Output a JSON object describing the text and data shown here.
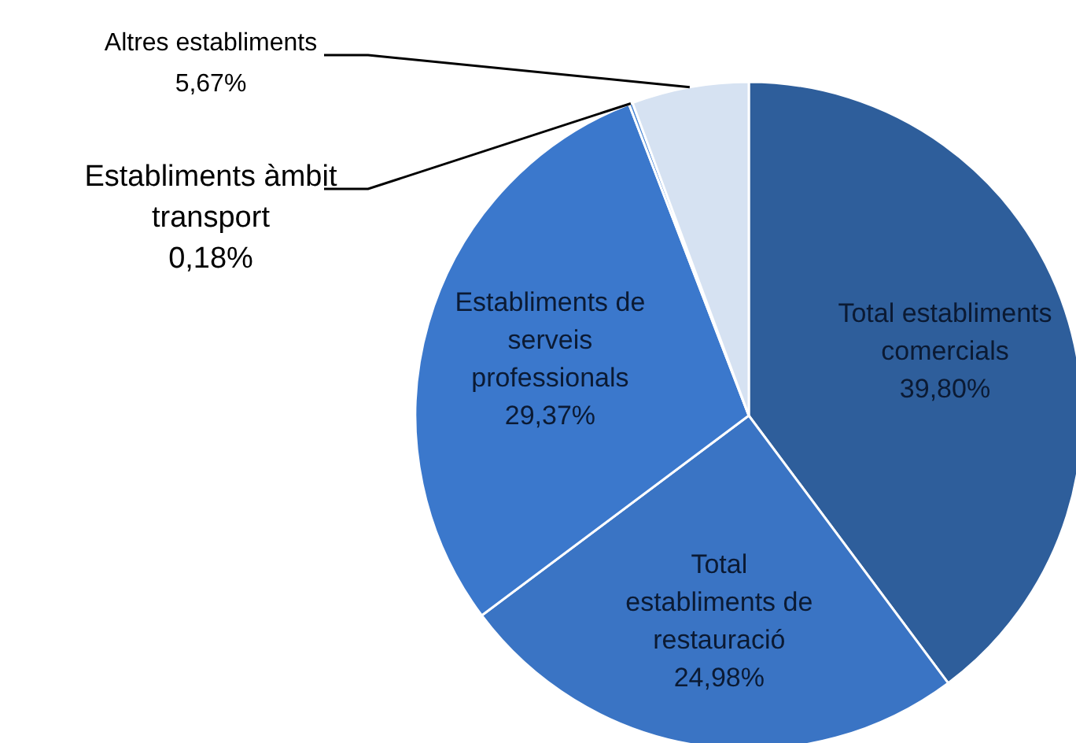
{
  "chart_data": {
    "type": "pie",
    "categories": [
      "Total establiments comercials",
      "Total establiments de restauració",
      "Establiments de serveis professionals",
      "Establiments àmbit transport",
      "Altres establiments"
    ],
    "values": [
      39.8,
      24.98,
      29.37,
      0.18,
      5.67
    ],
    "value_labels": [
      "39,80%",
      "24,98%",
      "29,37%",
      "0,18%",
      "5,67%"
    ],
    "colors": [
      "#2e5e9b",
      "#3a74c4",
      "#3b78cc",
      "#4a86d4",
      "#d6e2f2"
    ],
    "legend": false
  }
}
